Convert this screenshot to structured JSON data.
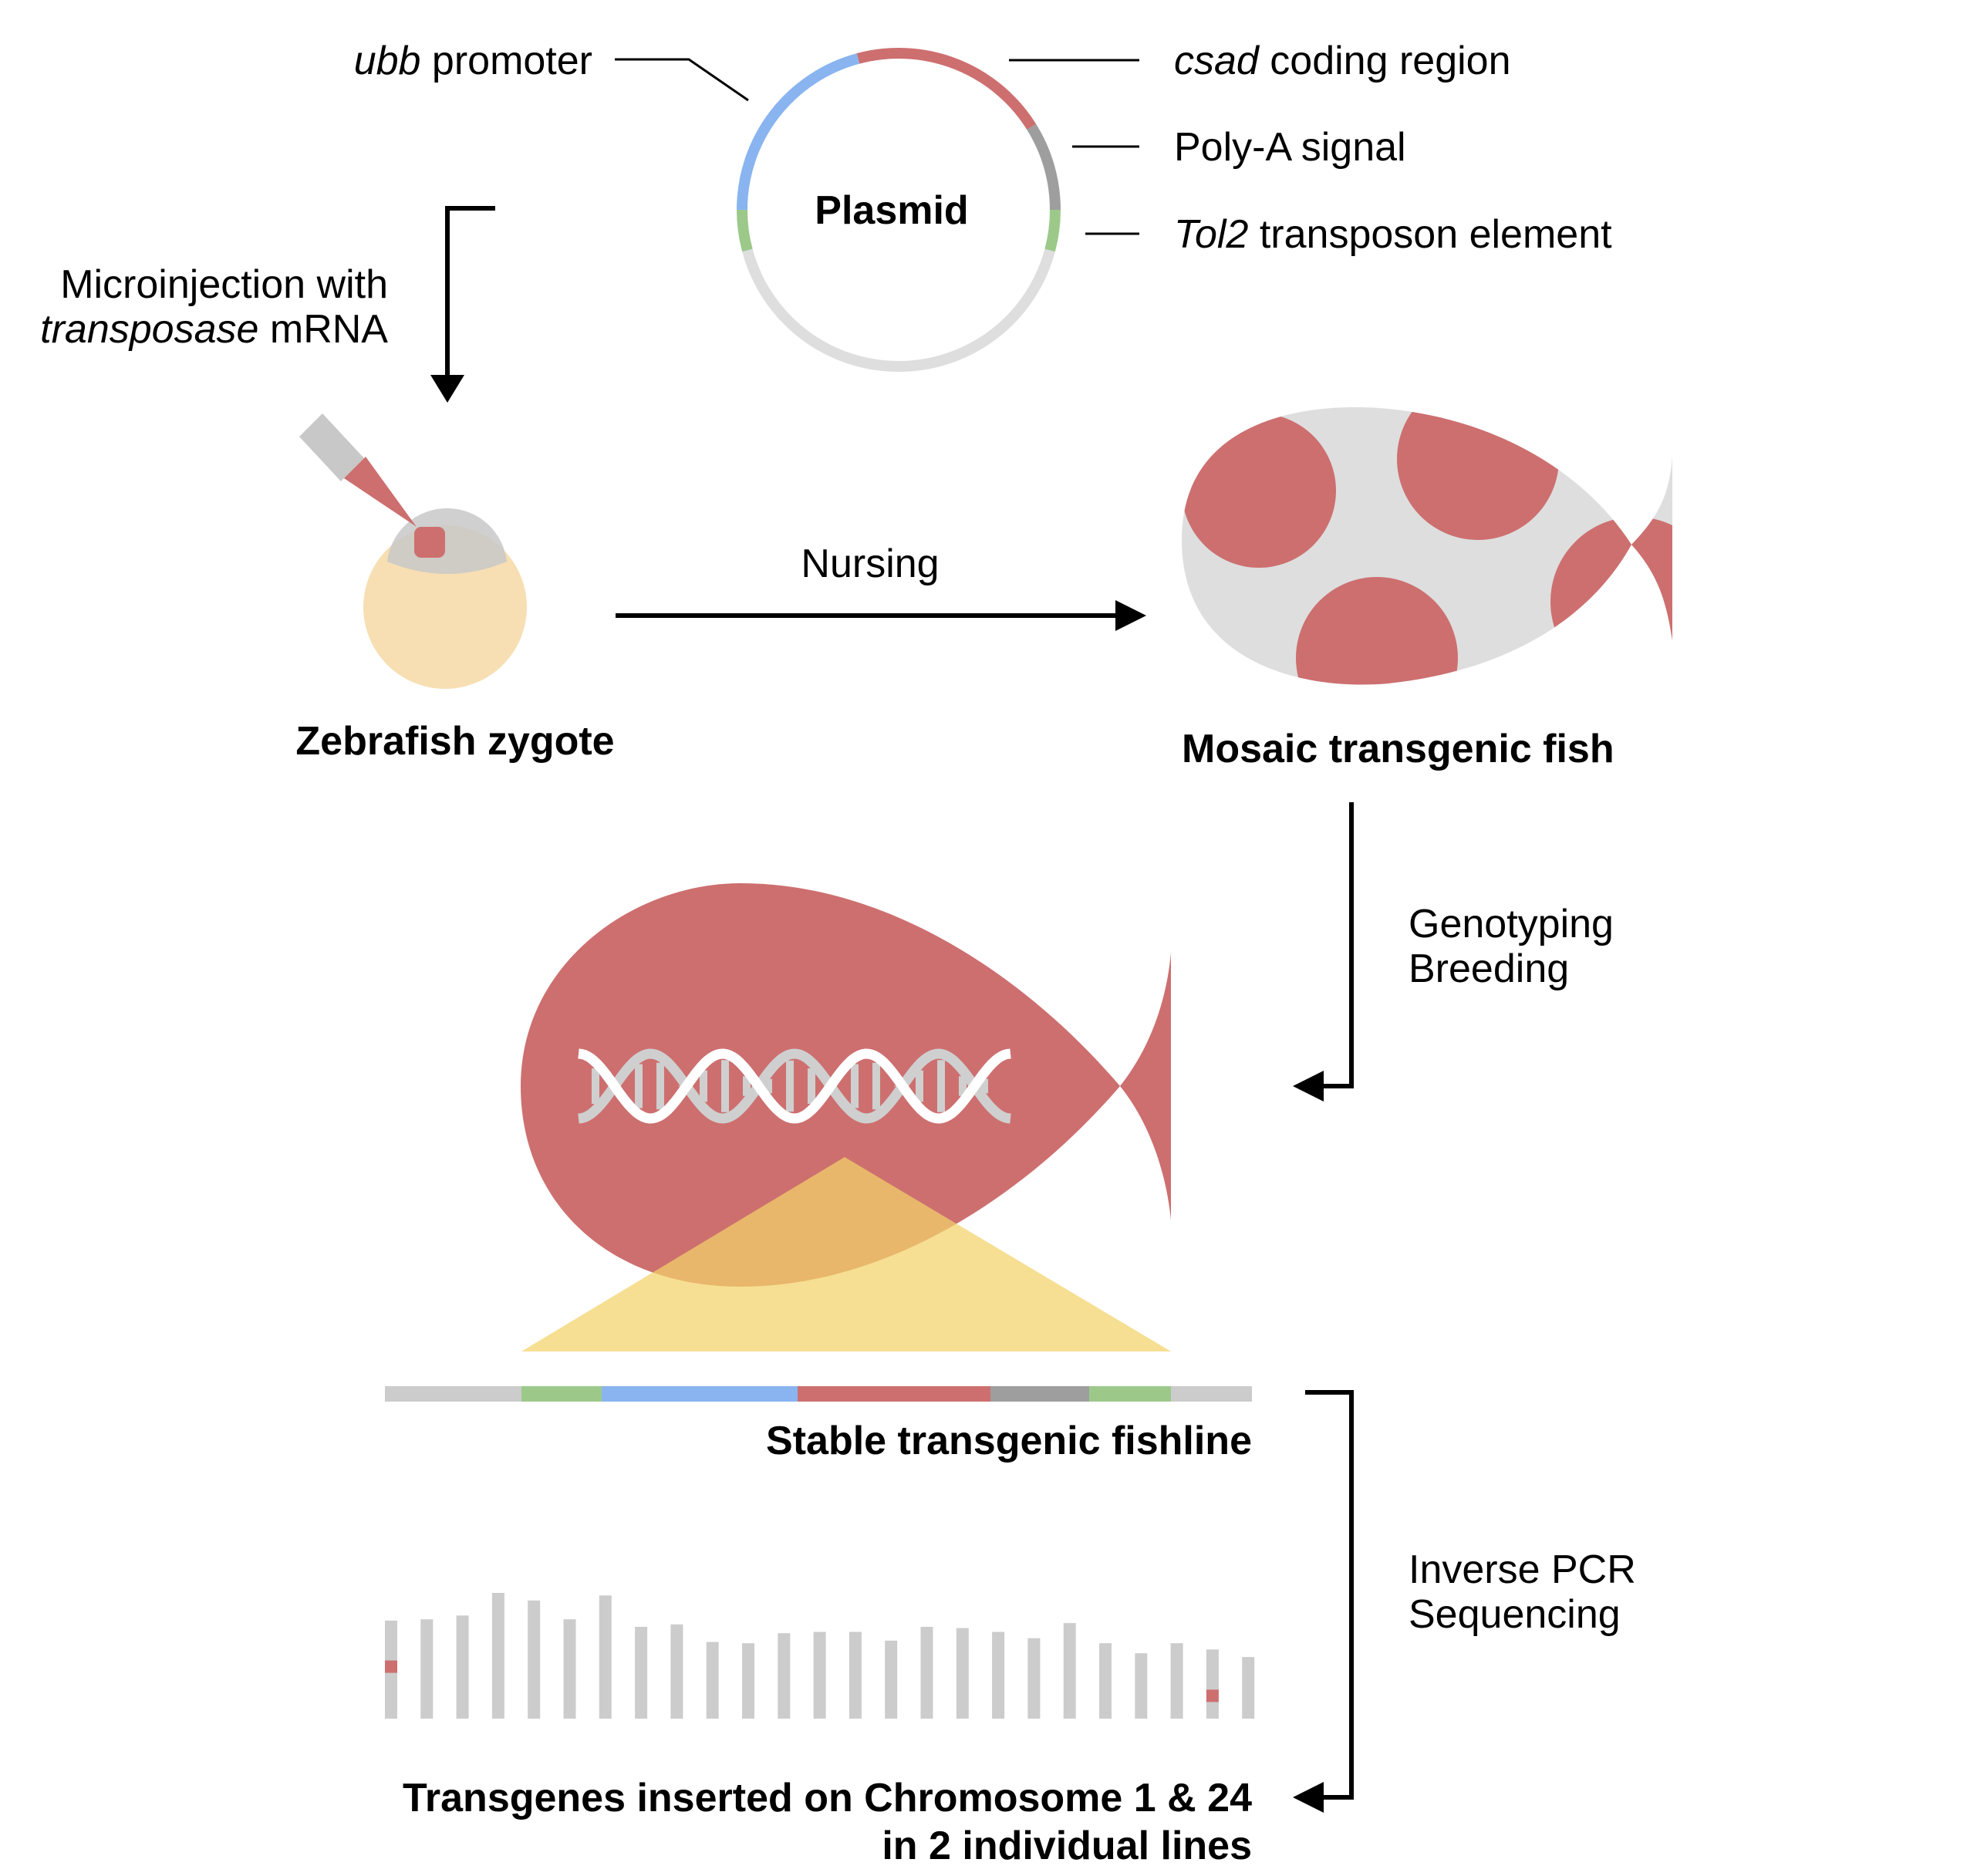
{
  "colors": {
    "promoter": "#89b4f0",
    "coding": "#cd6f6f",
    "polya": "#9e9e9e",
    "tol2": "#9cc98a",
    "backbone": "#dedede",
    "yolk": "#f7dfb3",
    "cell": "#c8c8c8",
    "insertion_triangle": "#f3d36a",
    "chromosome": "#cccccc",
    "arrow": "#000000"
  },
  "plasmid": {
    "title": "Plasmid",
    "labels": {
      "promoter_gene": "ubb",
      "promoter_text": " promoter",
      "coding_gene": "csad",
      "coding_text": " coding region",
      "polya": "Poly-A signal",
      "tol2_gene": "Tol2",
      "tol2_text": " transposon element"
    }
  },
  "steps": {
    "microinjection_line1": "Microinjection with",
    "microinjection_line2_italic": "transposase",
    "microinjection_line2_rest": " mRNA",
    "nursing": "Nursing",
    "genotyping": "Genotyping",
    "breeding": "Breeding",
    "inverse_pcr": "Inverse PCR",
    "sequencing": "Sequencing"
  },
  "captions": {
    "zygote": "Zebrafish zygote",
    "mosaic": "Mosaic transgenic fish",
    "stable": "Stable transgenic fishline",
    "result_line1": "Transgenes inserted on Chromosome 1 & 24",
    "result_line2": "in 2 individual lines"
  },
  "chromosomes": {
    "count": 25,
    "relative_heights": [
      0.78,
      0.79,
      0.82,
      1.0,
      0.94,
      0.79,
      0.98,
      0.73,
      0.75,
      0.61,
      0.6,
      0.68,
      0.69,
      0.69,
      0.62,
      0.73,
      0.72,
      0.69,
      0.64,
      0.76,
      0.6,
      0.52,
      0.6,
      0.55,
      0.49
    ],
    "highlighted": [
      1,
      24
    ]
  }
}
